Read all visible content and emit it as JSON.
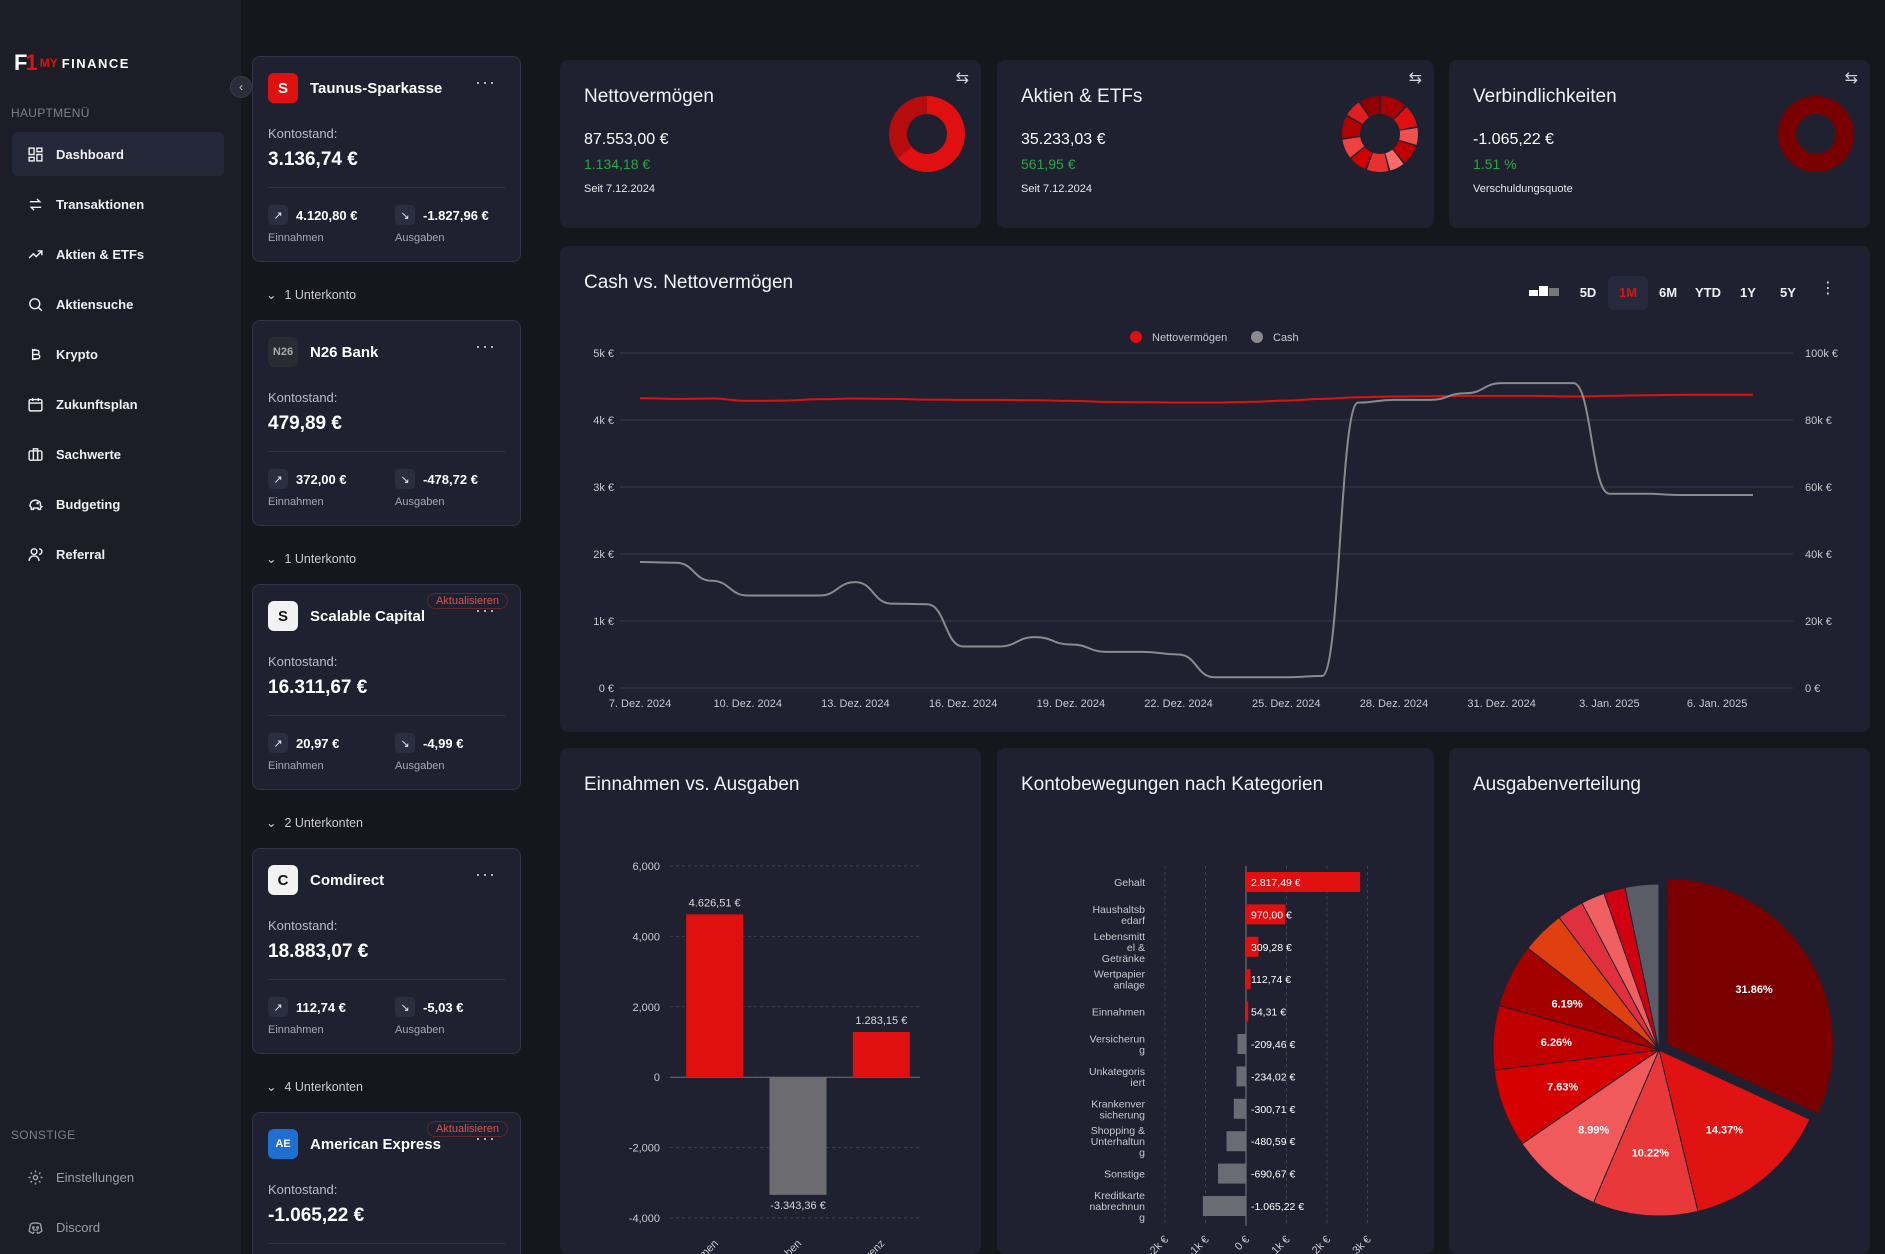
{
  "brand": {
    "mark": "F",
    "my": "MY",
    "name": "FINANCE"
  },
  "sidebar": {
    "main_label": "HAUPTMENÜ",
    "items": [
      {
        "label": "Dashboard",
        "icon": "dashboard-icon",
        "active": true
      },
      {
        "label": "Transaktionen",
        "icon": "arrows-swap-icon"
      },
      {
        "label": "Aktien & ETFs",
        "icon": "trending-up-icon"
      },
      {
        "label": "Aktiensuche",
        "icon": "search-icon"
      },
      {
        "label": "Krypto",
        "icon": "bitcoin-icon"
      },
      {
        "label": "Zukunftsplan",
        "icon": "calendar-icon"
      },
      {
        "label": "Sachwerte",
        "icon": "briefcase-icon"
      },
      {
        "label": "Budgeting",
        "icon": "piggy-bank-icon"
      },
      {
        "label": "Referral",
        "icon": "users-icon"
      }
    ],
    "other_label": "SONSTIGE",
    "other_items": [
      {
        "label": "Einstellungen",
        "icon": "gear-icon"
      },
      {
        "label": "Discord",
        "icon": "discord-icon"
      }
    ]
  },
  "accounts": [
    {
      "name": "Taunus-Sparkasse",
      "balance_label": "Kontostand:",
      "balance": "3.136,74 €",
      "income": "4.120,80 €",
      "income_label": "Einnahmen",
      "expense": "-1.827,96 €",
      "expense_label": "Ausgaben",
      "sub": "1 Unterkonto",
      "badge": ""
    },
    {
      "name": "N26 Bank",
      "balance_label": "Kontostand:",
      "balance": "479,89 €",
      "income": "372,00 €",
      "income_label": "Einnahmen",
      "expense": "-478,72 €",
      "expense_label": "Ausgaben",
      "sub": "1 Unterkonto",
      "badge": ""
    },
    {
      "name": "Scalable Capital",
      "balance_label": "Kontostand:",
      "balance": "16.311,67 €",
      "income": "20,97 €",
      "income_label": "Einnahmen",
      "expense": "-4,99 €",
      "expense_label": "Ausgaben",
      "sub": "2 Unterkonten",
      "badge": "Aktualisieren"
    },
    {
      "name": "Comdirect",
      "balance_label": "Kontostand:",
      "balance": "18.883,07 €",
      "income": "112,74 €",
      "income_label": "Einnahmen",
      "expense": "-5,03 €",
      "expense_label": "Ausgaben",
      "sub": "4 Unterkonten",
      "badge": ""
    },
    {
      "name": "American Express",
      "balance_label": "Kontostand:",
      "balance": "-1.065,22 €",
      "badge": "Aktualisieren"
    }
  ],
  "kpis": [
    {
      "title": "Nettovermögen",
      "value": "87.553,00 €",
      "delta": "1.134,18 €",
      "note": "Seit 7.12.2024"
    },
    {
      "title": "Aktien & ETFs",
      "value": "35.233,03 €",
      "delta": "561,95 €",
      "note": "Seit 7.12.2024"
    },
    {
      "title": "Verbindlichkeiten",
      "value": "-1.065,22 €",
      "delta": "1.51 %",
      "note": "Verschuldungsquote"
    }
  ],
  "cash_chart": {
    "title": "Cash vs. Nettovermögen",
    "ranges": [
      "5D",
      "1M",
      "6M",
      "YTD",
      "1Y",
      "5Y"
    ],
    "active_range": "1M",
    "legend": [
      "Nettovermögen",
      "Cash"
    ]
  },
  "chart_data": [
    {
      "type": "line",
      "title": "Cash vs. Nettovermögen",
      "x": [
        "7. Dez. 2024",
        "8. Dez.",
        "9. Dez.",
        "10. Dez. 2024",
        "11. Dez.",
        "12. Dez.",
        "13. Dez. 2024",
        "14. Dez.",
        "15. Dez.",
        "16. Dez. 2024",
        "17. Dez.",
        "18. Dez.",
        "19. Dez. 2024",
        "20. Dez.",
        "21. Dez.",
        "22. Dez. 2024",
        "23. Dez.",
        "24. Dez.",
        "25. Dez. 2024",
        "26. Dez.",
        "27. Dez.",
        "28. Dez. 2024",
        "29. Dez.",
        "30. Dez.",
        "31. Dez. 2024",
        "1. Jan.",
        "2. Jan.",
        "3. Jan. 2025",
        "4. Jan.",
        "5. Jan.",
        "6. Jan. 2025",
        "7. Jan."
      ],
      "x_ticks": [
        "7. Dez. 2024",
        "10. Dez. 2024",
        "13. Dez. 2024",
        "16. Dez. 2024",
        "19. Dez. 2024",
        "22. Dez. 2024",
        "25. Dez. 2024",
        "28. Dez. 2024",
        "31. Dez. 2024",
        "3. Jan. 2025",
        "6. Jan. 2025"
      ],
      "series": [
        {
          "name": "Nettovermögen",
          "axis": "right",
          "color": "#e01010",
          "values": [
            86500,
            86300,
            86400,
            85700,
            85800,
            86200,
            86400,
            86300,
            86100,
            86000,
            86000,
            85900,
            85700,
            85400,
            85300,
            85200,
            85200,
            85400,
            85800,
            86300,
            86800,
            87000,
            87100,
            87200,
            87200,
            87200,
            87000,
            87200,
            87400,
            87500,
            87553,
            87553
          ]
        },
        {
          "name": "Cash",
          "axis": "left",
          "color": "#8a8a8f",
          "values": [
            1880,
            1870,
            1600,
            1380,
            1380,
            1380,
            1580,
            1260,
            1250,
            620,
            620,
            760,
            650,
            540,
            540,
            500,
            160,
            160,
            160,
            180,
            4260,
            4300,
            4300,
            4400,
            4550,
            4550,
            4550,
            2900,
            2900,
            2880,
            2880,
            2880
          ]
        }
      ],
      "yleft": {
        "ticks": [
          "0 €",
          "1k €",
          "2k €",
          "3k €",
          "4k €",
          "5k €"
        ],
        "lim": [
          0,
          5000
        ]
      },
      "yright": {
        "ticks": [
          "0 €",
          "20k €",
          "40k €",
          "60k €",
          "80k €",
          "100k €"
        ],
        "lim": [
          0,
          100000
        ]
      }
    },
    {
      "type": "bar",
      "title": "Einnahmen vs. Ausgaben",
      "categories": [
        "Einnahmen",
        "Ausgaben",
        "Differenz"
      ],
      "tick_labels": [
        "men",
        "ben",
        "renz"
      ],
      "values": [
        4626.51,
        -3343.36,
        1283.15
      ],
      "labels": [
        "4.626,51 €",
        "-3.343,36 €",
        "1.283,15 €"
      ],
      "colors": [
        "#e01010",
        "#6b6b70",
        "#e01010"
      ],
      "yticks": [
        "6,000",
        "4,000",
        "2,000",
        "0",
        "-2,000",
        "-4,000"
      ],
      "ylim": [
        -4000,
        6000
      ]
    },
    {
      "type": "bar",
      "orientation": "horizontal",
      "title": "Kontobewegungen nach Kategorien",
      "categories": [
        "Gehalt",
        "Haushaltsbedarf",
        "Lebensmittel & Getränke",
        "Wertpapieranlage",
        "Einnahmen",
        "Versicherung",
        "Unkategorisiert",
        "Krankenversicherung",
        "Shopping & Unterhaltung",
        "Sonstige",
        "Kreditkartenabrechnung"
      ],
      "values": [
        2817.49,
        970.0,
        309.28,
        112.74,
        54.31,
        -209.46,
        -234.02,
        -300.71,
        -480.59,
        -690.67,
        -1065.22
      ],
      "labels": [
        "2.817,49 €",
        "970,00 €",
        "309,28 €",
        "112,74 €",
        "54,31 €",
        "-209,46 €",
        "-234,02 €",
        "-300,71 €",
        "-480,59 €",
        "-690,67 €",
        "-1.065,22 €"
      ],
      "xticks": [
        "-2k €",
        "-1k €",
        "0 €",
        "1k €",
        "2k €",
        "3k €"
      ],
      "xlim": [
        -2000,
        3000
      ]
    },
    {
      "type": "pie",
      "title": "Ausgabenverteilung",
      "slices": [
        {
          "value": 31.86,
          "label": "31.86%",
          "color": "#7a0000"
        },
        {
          "value": 14.37,
          "label": "14.37%",
          "color": "#e01212"
        },
        {
          "value": 10.22,
          "label": "10.22%",
          "color": "#e8383a"
        },
        {
          "value": 8.99,
          "label": "8.99%",
          "color": "#f05a5a"
        },
        {
          "value": 7.63,
          "label": "7.63%",
          "color": "#d70000"
        },
        {
          "value": 6.26,
          "label": "6.26%",
          "color": "#c00000"
        },
        {
          "value": 6.19,
          "label": "6.19%",
          "color": "#a40000"
        },
        {
          "value": 4.2,
          "label": "",
          "color": "#e04010"
        },
        {
          "value": 2.6,
          "label": "",
          "color": "#e03040"
        },
        {
          "value": 2.3,
          "label": "",
          "color": "#f06060"
        },
        {
          "value": 2.1,
          "label": "",
          "color": "#d00010"
        },
        {
          "value": 3.28,
          "label": "",
          "color": "#5c5c66"
        }
      ]
    }
  ]
}
